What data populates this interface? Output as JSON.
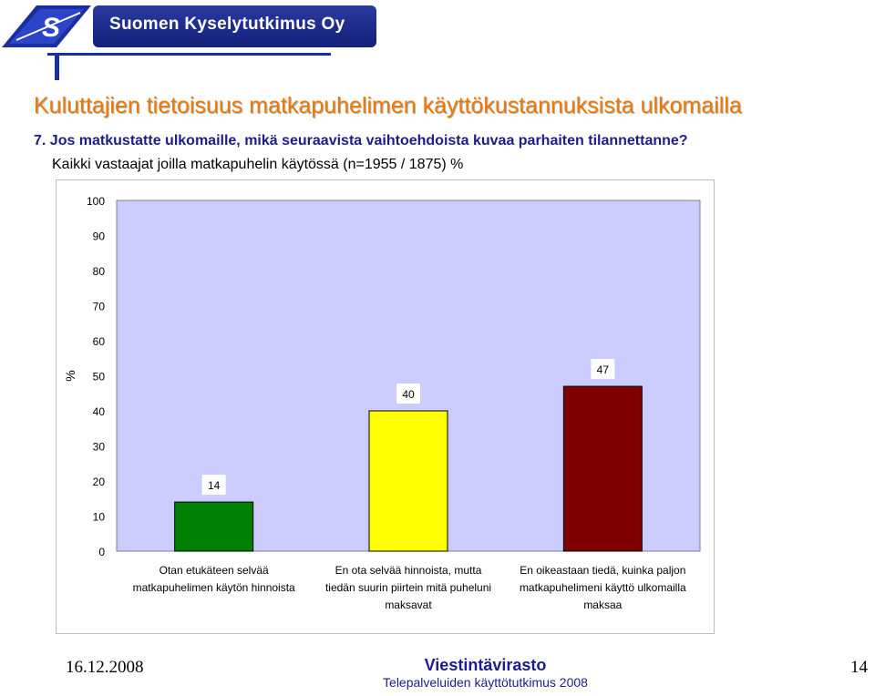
{
  "header": {
    "company": "Suomen Kyselytutkimus Oy"
  },
  "slide": {
    "title": "Kuluttajien tietoisuus matkapuhelimen käyttökustannuksista ulkomailla",
    "question": "7. Jos matkustatte ulkomaille, mikä seuraavista vaihtoehdoista kuvaa parhaiten tilannettanne?",
    "subtitle": "Kaikki vastaajat joilla matkapuhelin käytössä (n=1955 / 1875) %"
  },
  "colors": {
    "plot_background": "#ccccff",
    "title": "#f07800",
    "question": "#1c1c8c"
  },
  "chart_data": {
    "type": "bar",
    "ylabel": "%",
    "ylim": [
      0,
      100
    ],
    "yticks": [
      0,
      10,
      20,
      30,
      40,
      50,
      60,
      70,
      80,
      90,
      100
    ],
    "grid": false,
    "legend": "none",
    "categories": [
      [
        "Otan etukäteen selvää",
        "matkapuhelimen käytön hinnoista"
      ],
      [
        "En ota selvää hinnoista, mutta",
        "tiedän suurin piirtein mitä puheluni",
        "maksavat"
      ],
      [
        "En oikeastaan tiedä, kuinka paljon",
        "matkapuhelimeni käyttö ulkomailla",
        "maksaa"
      ]
    ],
    "values": [
      14,
      40,
      47
    ],
    "bar_colors": [
      "#008000",
      "#ffff00",
      "#800000"
    ]
  },
  "footer": {
    "date": "16.12.2008",
    "org": "Viestintävirasto",
    "sub": "Telepalveluiden käyttötutkimus 2008",
    "page": "14"
  }
}
